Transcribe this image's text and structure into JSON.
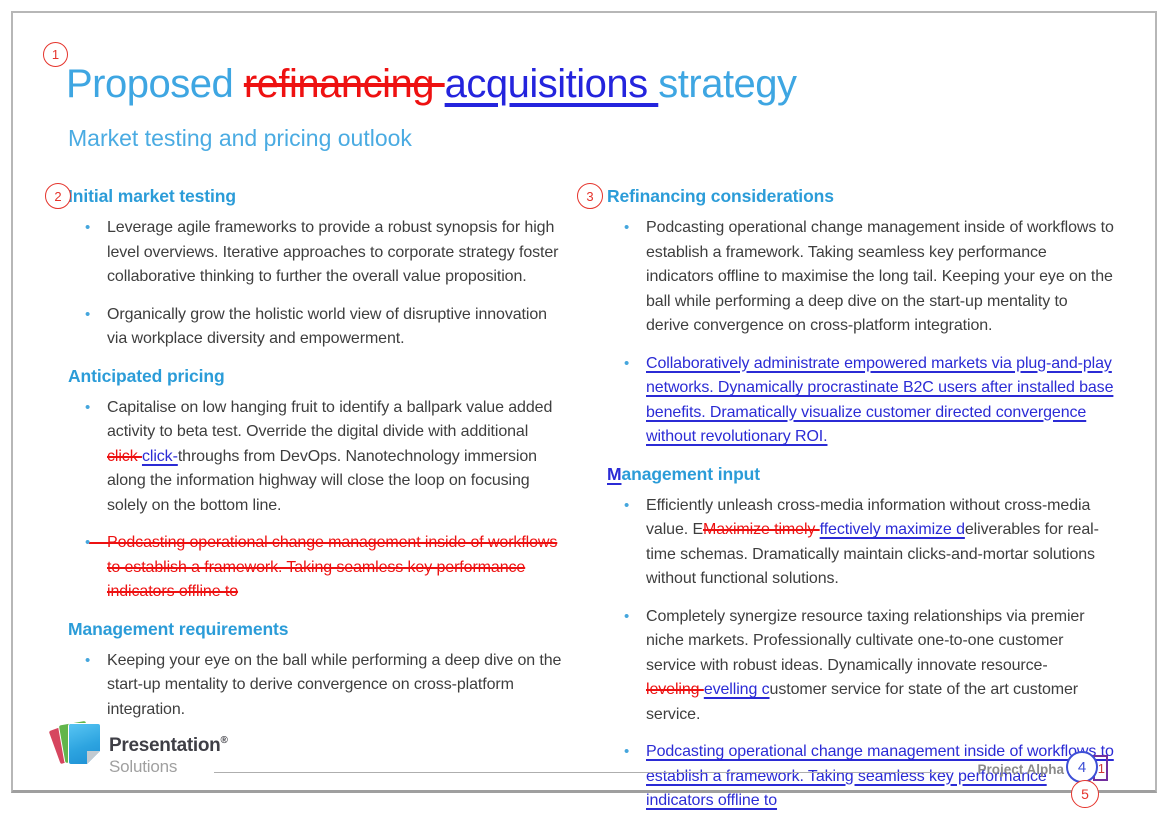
{
  "slide": {
    "title": {
      "pre": "Proposed ",
      "deleted": "refinancing ",
      "inserted": "acquisitions ",
      "post": "strategy"
    },
    "subtitle": "Market testing and pricing outlook",
    "columns": [
      {
        "sections": [
          {
            "heading": [
              {
                "type": "t",
                "text": "Initial market testing"
              }
            ],
            "bullets": [
              {
                "runs": [
                  {
                    "type": "t",
                    "text": "Leverage agile frameworks to provide a robust synopsis for high level overviews. Iterative approaches to corporate strategy foster collaborative thinking to further the overall value proposition."
                  }
                ]
              },
              {
                "runs": [
                  {
                    "type": "t",
                    "text": "Organically grow the holistic world view of disruptive innovation via workplace diversity and empowerment."
                  }
                ]
              }
            ]
          },
          {
            "heading": [
              {
                "type": "t",
                "text": "Anticipated pricing"
              }
            ],
            "bullets": [
              {
                "runs": [
                  {
                    "type": "t",
                    "text": "Capitalise on low hanging fruit to identify a ballpark value added activity to beta test. Override the digital divide with additional "
                  },
                  {
                    "type": "del",
                    "text": "click "
                  },
                  {
                    "type": "ins",
                    "text": "click-"
                  },
                  {
                    "type": "t",
                    "text": "throughs from DevOps. Nanotechnology immersion along the information highway will close the loop on focusing solely on the bottom line."
                  }
                ]
              },
              {
                "deleted": true,
                "runs": [
                  {
                    "type": "del",
                    "text": "Podcasting operational change management inside of workflows to establish a framework. Taking seamless key performance indicators offline to"
                  }
                ]
              }
            ]
          },
          {
            "heading": [
              {
                "type": "t",
                "text": "Management requirements"
              }
            ],
            "bullets": [
              {
                "runs": [
                  {
                    "type": "t",
                    "text": "Keeping your eye on the ball while performing a deep dive on the start-up mentality to derive convergence on cross-platform integration."
                  }
                ]
              }
            ]
          }
        ]
      },
      {
        "sections": [
          {
            "heading": [
              {
                "type": "t",
                "text": "Refinancing considerations"
              }
            ],
            "bullets": [
              {
                "runs": [
                  {
                    "type": "t",
                    "text": "Podcasting operational change management inside of workflows to establish a framework. Taking seamless key performance indicators offline to maximise the long tail. Keeping your eye on the ball while performing a deep dive on the start-up mentality to derive convergence on cross-platform integration."
                  }
                ]
              },
              {
                "runs": [
                  {
                    "type": "ins",
                    "text": "Collaboratively administrate empowered markets via plug-and-play networks. Dynamically procrastinate B2C users after installed base benefits. Dramatically visualize customer directed convergence without revolutionary ROI."
                  }
                ]
              }
            ]
          },
          {
            "heading": [
              {
                "type": "ins",
                "text": "M"
              },
              {
                "type": "t",
                "text": "anagement input"
              }
            ],
            "bullets": [
              {
                "runs": [
                  {
                    "type": "t",
                    "text": "Efficiently unleash cross-media information without cross-media value. E"
                  },
                  {
                    "type": "del",
                    "text": "Maximize timely "
                  },
                  {
                    "type": "ins",
                    "text": "ffectively maximize d"
                  },
                  {
                    "type": "t",
                    "text": "eliverables for real-time schemas. Dramatically maintain clicks-and-mortar solutions without functional solutions."
                  }
                ]
              },
              {
                "runs": [
                  {
                    "type": "t",
                    "text": "Completely synergize resource taxing relationships via premier niche markets. Professionally cultivate one-to-one customer service with robust ideas. Dynamically innovate resource-"
                  },
                  {
                    "type": "del",
                    "text": "leveling "
                  },
                  {
                    "type": "ins",
                    "text": "evelling c"
                  },
                  {
                    "type": "t",
                    "text": "ustomer service for state of the art customer service."
                  }
                ]
              },
              {
                "runs": [
                  {
                    "type": "ins",
                    "text": "Podcasting operational change management inside of workflows to establish a framework. Taking seamless key performance indicators offline to"
                  }
                ]
              }
            ]
          }
        ]
      }
    ]
  },
  "annotations": {
    "markers": [
      {
        "label": "1",
        "color": "red"
      },
      {
        "label": "2",
        "color": "red"
      },
      {
        "label": "3",
        "color": "red"
      },
      {
        "label": "4",
        "color": "blue"
      },
      {
        "label": "5",
        "color": "red"
      }
    ]
  },
  "footer": {
    "brand_name": "Presentation",
    "brand_reg": "®",
    "brand_sub": "Solutions",
    "project_label": "Project Alpha",
    "page_number": "1"
  },
  "colors": {
    "title_blue": "#3ea6e2",
    "heading_blue": "#2b9cd8",
    "body_gray": "#3e3e3e",
    "insert_blue": "#2b2bd5",
    "delete_red": "#ed1111",
    "comment_circle_red": "#e5342c",
    "comment_circle_blue": "#3d4fd6",
    "page_number_box_purple": "#722e9e",
    "logo_red": "#d6465f",
    "logo_green": "#62b54b",
    "logo_blue": "#2da4e0"
  }
}
